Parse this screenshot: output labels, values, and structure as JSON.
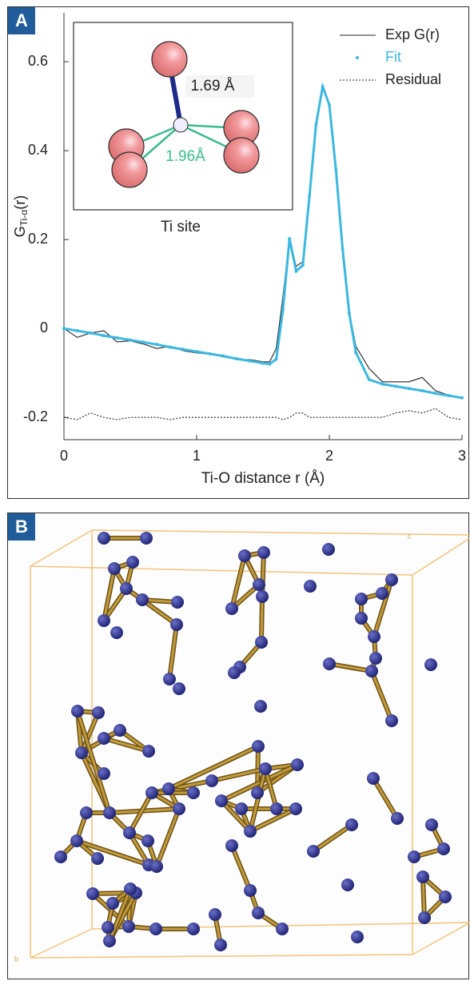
{
  "chart_data": {
    "type": "line",
    "panel_label": "A",
    "xlabel": "Ti-O distance r (Å)",
    "ylabel": {
      "main": "G",
      "subscript": "Ti-α",
      "suffix": "(r)"
    },
    "xlim": [
      0,
      3
    ],
    "xticks": [
      0,
      1,
      2,
      3
    ],
    "ylim": [
      -0.25,
      0.71
    ],
    "yticks": [
      -0.2,
      0,
      0.2,
      0.4,
      0.6
    ],
    "x": [
      0,
      0.1,
      0.2,
      0.3,
      0.4,
      0.5,
      0.6,
      0.7,
      0.8,
      0.9,
      1,
      1.1,
      1.2,
      1.3,
      1.4,
      1.5,
      1.55,
      1.6,
      1.65,
      1.7,
      1.75,
      1.8,
      1.85,
      1.9,
      1.95,
      2,
      2.05,
      2.1,
      2.15,
      2.2,
      2.3,
      2.4,
      2.5,
      2.6,
      2.7,
      2.8,
      2.9,
      3
    ],
    "series": [
      {
        "name": "Exp G(r)",
        "color": "#222222",
        "linestyle": "solid",
        "marker": false,
        "values": [
          0,
          -0.02,
          -0.01,
          -0.005,
          -0.03,
          -0.028,
          -0.035,
          -0.045,
          -0.04,
          -0.05,
          -0.055,
          -0.058,
          -0.06,
          -0.07,
          -0.07,
          -0.075,
          -0.075,
          -0.045,
          0.07,
          0.205,
          0.14,
          0.15,
          0.29,
          0.45,
          0.545,
          0.5,
          0.35,
          0.18,
          0.04,
          -0.04,
          -0.09,
          -0.12,
          -0.12,
          -0.12,
          -0.11,
          -0.14,
          -0.15,
          -0.155
        ]
      },
      {
        "name": "Fit",
        "color": "#3cb8e0",
        "linestyle": "solid",
        "marker": true,
        "values": [
          0,
          -0.005,
          -0.01,
          -0.016,
          -0.021,
          -0.026,
          -0.031,
          -0.036,
          -0.042,
          -0.047,
          -0.052,
          -0.057,
          -0.062,
          -0.068,
          -0.073,
          -0.078,
          -0.08,
          -0.069,
          0.041,
          0.202,
          0.129,
          0.142,
          0.297,
          0.459,
          0.544,
          0.503,
          0.357,
          0.179,
          0.034,
          -0.054,
          -0.115,
          -0.125,
          -0.13,
          -0.135,
          -0.14,
          -0.146,
          -0.151,
          -0.156
        ]
      },
      {
        "name": "Residual",
        "color": "#222222",
        "linestyle": "dotted",
        "marker": false,
        "values": [
          -0.2,
          -0.205,
          -0.19,
          -0.2,
          -0.205,
          -0.2,
          -0.2,
          -0.2,
          -0.205,
          -0.2,
          -0.2,
          -0.2,
          -0.2,
          -0.2,
          -0.2,
          -0.2,
          -0.2,
          -0.2,
          -0.205,
          -0.2,
          -0.19,
          -0.19,
          -0.2,
          -0.2,
          -0.2,
          -0.2,
          -0.2,
          -0.2,
          -0.2,
          -0.2,
          -0.2,
          -0.2,
          -0.19,
          -0.185,
          -0.19,
          -0.18,
          -0.2,
          -0.205
        ]
      }
    ],
    "inset": {
      "bond_labels": [
        "1.69 Å",
        "1.96Å"
      ],
      "caption": "Ti site"
    }
  },
  "panel_b": {
    "panel_label": "B",
    "axis_labels": [
      "c",
      "b"
    ]
  }
}
